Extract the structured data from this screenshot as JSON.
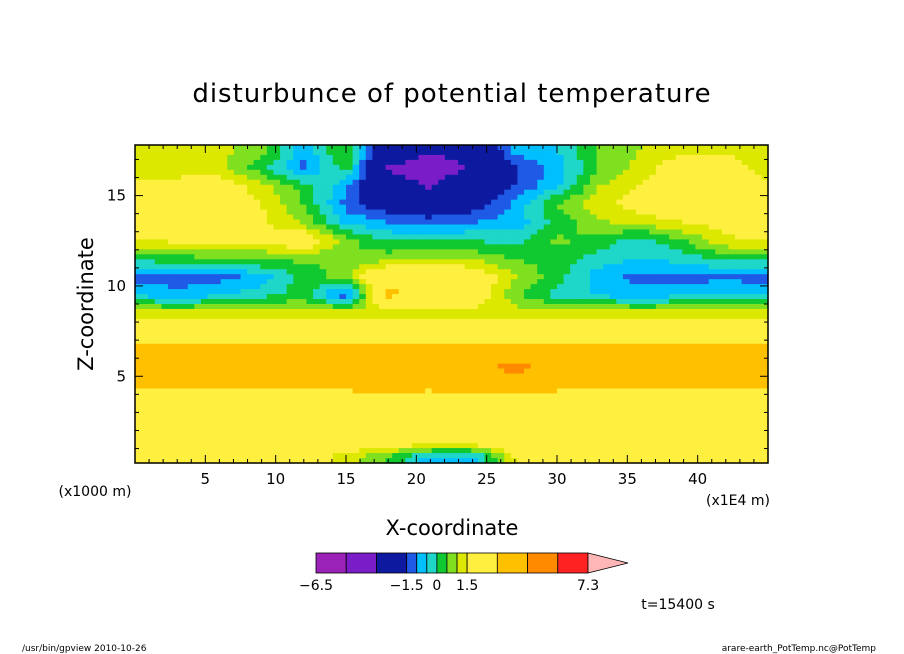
{
  "chart_data": {
    "type": "heatmap",
    "title": "disturbunce of potential temperature",
    "xlabel": "X-coordinate",
    "ylabel": "Z-coordinate",
    "x_unit_label": "(x1E4 m)",
    "y_unit_label": "(x1000 m)",
    "xlim": [
      0,
      45
    ],
    "ylim": [
      0.2,
      17.8
    ],
    "x_ticks": [
      5,
      10,
      15,
      20,
      25,
      30,
      35,
      40
    ],
    "y_ticks": [
      5,
      10,
      15
    ],
    "x_tick_labels": [
      "5",
      "10",
      "15",
      "20",
      "25",
      "30",
      "35",
      "40"
    ],
    "y_tick_labels": [
      "5",
      "10",
      "15"
    ],
    "colorbar": {
      "levels": [
        -6.5,
        -5,
        -3.5,
        -1.5,
        -1,
        -0.5,
        0,
        0.5,
        1,
        1.5,
        3,
        4.5,
        6,
        7.3
      ],
      "tick_labels": [
        "−6.5",
        "−1.5",
        "0",
        "1.5",
        "7.3"
      ],
      "tick_values": [
        -6.5,
        -1.5,
        0,
        1.5,
        7.3
      ],
      "colors": [
        "#e21aa8",
        "#9a22b8",
        "#7a1cc8",
        "#0d1aa0",
        "#1f5ae6",
        "#00bfff",
        "#1fd7c8",
        "#10c830",
        "#7fe020",
        "#dde800",
        "#fff040",
        "#ffc000",
        "#ff8a00",
        "#ff2222",
        "#ff7878",
        "#ffb6b6"
      ]
    },
    "z_field": {
      "x": [
        0,
        3,
        6,
        9,
        12,
        15,
        18,
        21,
        24,
        27,
        30,
        33,
        36,
        39,
        42,
        45
      ],
      "z": [
        0.5,
        1.5,
        2.5,
        3.5,
        4.5,
        5.5,
        6.5,
        7.5,
        8.5,
        9.5,
        10.5,
        11.5,
        12.5,
        13.5,
        14.5,
        15.5,
        16.5,
        17.5
      ],
      "values": [
        [
          2.0,
          2.0,
          2.0,
          2.0,
          2.0,
          1.2,
          0.5,
          -0.8,
          -0.8,
          1.5,
          2.0,
          2.0,
          2.0,
          2.0,
          2.0,
          2.0
        ],
        [
          2.0,
          2.0,
          2.0,
          2.0,
          2.0,
          2.5,
          2.2,
          2.5,
          2.5,
          2.5,
          2.0,
          2.0,
          2.0,
          2.0,
          2.0,
          2.0
        ],
        [
          2.0,
          2.0,
          2.0,
          2.0,
          2.0,
          2.6,
          2.6,
          2.7,
          2.7,
          2.6,
          2.5,
          2.0,
          2.0,
          2.0,
          2.0,
          2.0
        ],
        [
          2.1,
          2.1,
          2.1,
          2.1,
          2.1,
          2.1,
          2.1,
          2.1,
          2.1,
          2.1,
          2.1,
          2.1,
          2.1,
          2.1,
          2.1,
          2.1
        ],
        [
          3.4,
          3.4,
          3.4,
          3.4,
          3.4,
          3.4,
          3.5,
          3.4,
          3.6,
          3.8,
          3.4,
          3.4,
          3.4,
          3.4,
          3.4,
          3.4
        ],
        [
          3.6,
          3.6,
          3.6,
          3.6,
          3.6,
          3.6,
          3.7,
          3.8,
          4.0,
          5.0,
          3.8,
          3.6,
          3.6,
          3.6,
          3.6,
          3.6
        ],
        [
          3.2,
          3.2,
          3.2,
          3.2,
          3.2,
          3.3,
          3.4,
          3.5,
          3.5,
          3.4,
          3.3,
          3.2,
          3.2,
          3.2,
          3.2,
          3.2
        ],
        [
          2.1,
          2.1,
          2.1,
          2.1,
          2.1,
          2.1,
          2.1,
          2.1,
          2.1,
          2.1,
          2.1,
          2.1,
          2.1,
          2.1,
          2.1,
          2.1
        ],
        [
          1.2,
          1.2,
          1.2,
          1.2,
          1.2,
          1.3,
          1.3,
          1.3,
          1.3,
          1.2,
          1.2,
          1.2,
          1.2,
          1.2,
          1.2,
          1.2
        ],
        [
          -0.6,
          -0.8,
          -0.6,
          -0.2,
          0.3,
          -1.5,
          3.2,
          2.5,
          2.0,
          0.7,
          -0.2,
          -0.6,
          -0.8,
          -0.6,
          -0.6,
          -0.6
        ],
        [
          -1.2,
          -1.3,
          -1.2,
          -0.8,
          0.2,
          0.8,
          2.7,
          2.6,
          2.2,
          1.0,
          0.2,
          -0.8,
          -1.2,
          -1.2,
          -1.1,
          -1.2
        ],
        [
          0.2,
          0.3,
          0.4,
          0.6,
          0.6,
          0.5,
          0.8,
          1.0,
          0.9,
          0.5,
          0.3,
          -0.2,
          -0.5,
          -0.3,
          0.2,
          0.2
        ],
        [
          1.5,
          1.6,
          1.8,
          1.6,
          2.2,
          0.7,
          0.0,
          0.0,
          0.0,
          -0.2,
          0.6,
          0.3,
          -0.3,
          0.5,
          1.4,
          1.5
        ],
        [
          1.8,
          1.9,
          2.0,
          1.6,
          0.9,
          -0.6,
          -1.0,
          -1.2,
          -1.0,
          -0.8,
          0.2,
          0.9,
          1.2,
          1.5,
          1.8,
          1.8
        ],
        [
          2.1,
          2.0,
          2.2,
          1.5,
          0.5,
          -1.2,
          -2.0,
          -2.2,
          -1.8,
          -0.9,
          0.6,
          1.3,
          1.8,
          2.0,
          2.5,
          2.1
        ],
        [
          1.8,
          1.8,
          2.0,
          1.2,
          0.3,
          -0.9,
          -2.8,
          -3.6,
          -2.4,
          -1.5,
          -0.6,
          1.0,
          1.6,
          2.3,
          2.8,
          1.8
        ],
        [
          1.0,
          1.2,
          1.2,
          0.2,
          -1.2,
          0.3,
          -3.6,
          -4.2,
          -3.4,
          -1.6,
          -0.8,
          0.5,
          1.2,
          2.0,
          2.0,
          1.0
        ],
        [
          1.3,
          1.3,
          1.1,
          0.8,
          -0.8,
          0.6,
          -2.4,
          -3.4,
          -2.8,
          -0.8,
          -0.5,
          0.6,
          1.0,
          1.4,
          1.3,
          1.3
        ]
      ]
    },
    "annotation": "t=15400 s"
  },
  "footer": {
    "left": "/usr/bin/gpview   2010-10-26",
    "right": "arare-earth_PotTemp.nc@PotTemp"
  }
}
